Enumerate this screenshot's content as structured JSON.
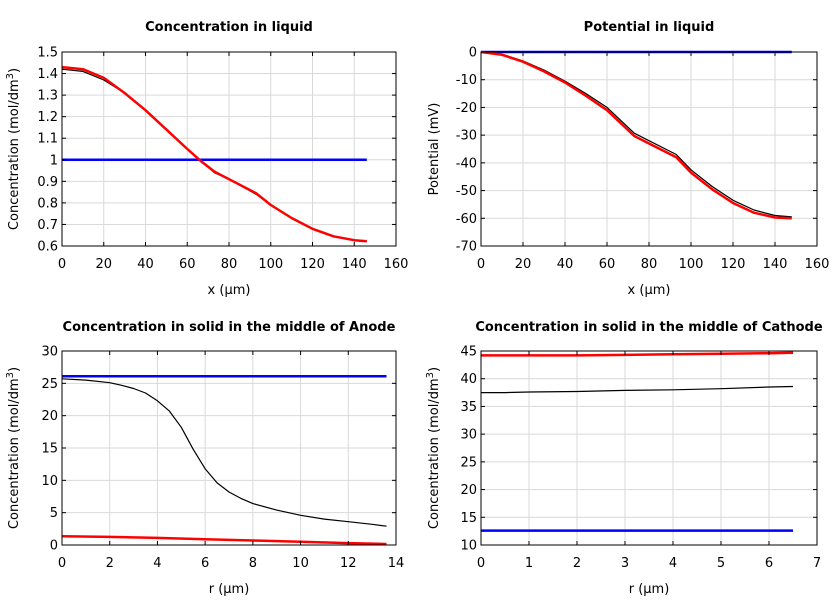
{
  "chart_data": [
    {
      "type": "line",
      "title": "Concentration in liquid",
      "xlabel": "x (µm)",
      "ylabel_main": "Concentration (mol/dm",
      "ylabel_sup": "3",
      "ylabel_end": ")",
      "xlim": [
        0,
        160
      ],
      "ylim": [
        0.6,
        1.5
      ],
      "xticks": [
        0,
        20,
        40,
        60,
        80,
        100,
        120,
        140,
        160
      ],
      "xtick_labels": [
        "0",
        "20",
        "40",
        "60",
        "80",
        "100",
        "120",
        "140",
        "160"
      ],
      "yticks": [
        0.6,
        0.7,
        0.8,
        0.9,
        1.0,
        1.1,
        1.2,
        1.3,
        1.4,
        1.5
      ],
      "ytick_labels": [
        "0.6",
        "0.7",
        "0.8",
        "0.9",
        "1",
        "1.1",
        "1.2",
        "1.3",
        "1.4",
        "1.5"
      ],
      "grid": true,
      "series": [
        {
          "color": "#0000ff",
          "width": 2.5,
          "x": [
            0,
            146
          ],
          "y": [
            1.0,
            1.0
          ]
        },
        {
          "color": "#000000",
          "width": 1.2,
          "x": [
            0,
            10,
            20,
            30,
            40,
            50,
            60,
            67,
            73,
            80,
            93,
            100,
            110,
            120,
            130,
            140,
            146
          ],
          "y": [
            1.42,
            1.41,
            1.37,
            1.31,
            1.23,
            1.14,
            1.05,
            0.99,
            0.94,
            0.91,
            0.84,
            0.79,
            0.73,
            0.68,
            0.645,
            0.627,
            0.622
          ]
        },
        {
          "color": "#ff0000",
          "width": 2.5,
          "x": [
            0,
            10,
            20,
            30,
            40,
            50,
            60,
            67,
            73,
            80,
            93,
            100,
            110,
            120,
            130,
            140,
            146
          ],
          "y": [
            1.43,
            1.42,
            1.38,
            1.31,
            1.23,
            1.14,
            1.05,
            0.99,
            0.945,
            0.91,
            0.845,
            0.79,
            0.73,
            0.68,
            0.645,
            0.627,
            0.622
          ]
        }
      ]
    },
    {
      "type": "line",
      "title": "Potential in liquid",
      "xlabel": "x (µm)",
      "ylabel_main": "Potential (mV)",
      "ylabel_sup": "",
      "ylabel_end": "",
      "xlim": [
        0,
        160
      ],
      "ylim": [
        -70,
        0
      ],
      "xticks": [
        0,
        20,
        40,
        60,
        80,
        100,
        120,
        140,
        160
      ],
      "xtick_labels": [
        "0",
        "20",
        "40",
        "60",
        "80",
        "100",
        "120",
        "140",
        "160"
      ],
      "yticks": [
        -70,
        -60,
        -50,
        -40,
        -30,
        -20,
        -10,
        0
      ],
      "ytick_labels": [
        "-70",
        "-60",
        "-50",
        "-40",
        "-30",
        "-20",
        "-10",
        "0"
      ],
      "grid": true,
      "series": [
        {
          "color": "#0000ff",
          "width": 2.5,
          "x": [
            0,
            148
          ],
          "y": [
            0,
            0
          ]
        },
        {
          "color": "#000000",
          "width": 1.2,
          "x": [
            0,
            10,
            20,
            30,
            40,
            50,
            60,
            73,
            80,
            93,
            100,
            110,
            120,
            130,
            140,
            148
          ],
          "y": [
            0,
            -0.8,
            -3.2,
            -6.5,
            -10.5,
            -15,
            -20,
            -29.3,
            -32,
            -37,
            -42.5,
            -48.5,
            -53.5,
            -57,
            -59,
            -59.5
          ]
        },
        {
          "color": "#ff0000",
          "width": 2.5,
          "x": [
            0,
            10,
            20,
            30,
            40,
            50,
            60,
            73,
            80,
            93,
            100,
            110,
            120,
            130,
            140,
            148
          ],
          "y": [
            0,
            -1.0,
            -3.5,
            -7,
            -11,
            -15.8,
            -21,
            -30.3,
            -33,
            -38,
            -43.5,
            -49.5,
            -54.5,
            -58,
            -59.7,
            -60
          ]
        }
      ]
    },
    {
      "type": "line",
      "title": "Concentration in solid in the middle of Anode",
      "xlabel": "r (µm)",
      "ylabel_main": "Concentration (mol/dm",
      "ylabel_sup": "3",
      "ylabel_end": ")",
      "xlim": [
        0,
        14
      ],
      "ylim": [
        0,
        30
      ],
      "xticks": [
        0,
        2,
        4,
        6,
        8,
        10,
        12,
        14
      ],
      "xtick_labels": [
        "0",
        "2",
        "4",
        "6",
        "8",
        "10",
        "12",
        "14"
      ],
      "yticks": [
        0,
        5,
        10,
        15,
        20,
        25,
        30
      ],
      "ytick_labels": [
        "0",
        "5",
        "10",
        "15",
        "20",
        "25",
        "30"
      ],
      "grid": true,
      "series": [
        {
          "color": "#0000ff",
          "width": 2.5,
          "x": [
            0,
            13.6
          ],
          "y": [
            26.1,
            26.1
          ]
        },
        {
          "color": "#000000",
          "width": 1.2,
          "x": [
            0,
            1,
            2,
            2.5,
            3,
            3.5,
            4,
            4.5,
            5,
            5.5,
            6,
            6.5,
            7,
            7.5,
            8,
            9,
            10,
            11,
            12,
            13,
            13.6
          ],
          "y": [
            25.7,
            25.5,
            25.1,
            24.7,
            24.2,
            23.5,
            22.3,
            20.7,
            18.2,
            14.8,
            11.8,
            9.6,
            8.2,
            7.2,
            6.4,
            5.4,
            4.6,
            4.0,
            3.6,
            3.2,
            2.9
          ]
        },
        {
          "color": "#ff0000",
          "width": 2.5,
          "x": [
            0,
            2,
            4,
            6,
            8,
            10,
            12,
            13.6
          ],
          "y": [
            1.35,
            1.25,
            1.1,
            0.9,
            0.7,
            0.5,
            0.3,
            0.15
          ]
        }
      ]
    },
    {
      "type": "line",
      "title": "Concentration in solid in the middle of Cathode",
      "xlabel": "r (µm)",
      "ylabel_main": "Concentration (mol/dm",
      "ylabel_sup": "3",
      "ylabel_end": ")",
      "xlim": [
        0,
        7
      ],
      "ylim": [
        10,
        45
      ],
      "xticks": [
        0,
        1,
        2,
        3,
        4,
        5,
        6,
        7
      ],
      "xtick_labels": [
        "0",
        "1",
        "2",
        "3",
        "4",
        "5",
        "6",
        "7"
      ],
      "yticks": [
        10,
        15,
        20,
        25,
        30,
        35,
        40,
        45
      ],
      "ytick_labels": [
        "10",
        "15",
        "20",
        "25",
        "30",
        "35",
        "40",
        "45"
      ],
      "grid": true,
      "series": [
        {
          "color": "#0000ff",
          "width": 2.5,
          "x": [
            0,
            6.5
          ],
          "y": [
            12.6,
            12.6
          ]
        },
        {
          "color": "#000000",
          "width": 1.2,
          "x": [
            0,
            0.5,
            1,
            2,
            3,
            4,
            5,
            6,
            6.5
          ],
          "y": [
            37.5,
            37.5,
            37.6,
            37.7,
            37.9,
            38.0,
            38.2,
            38.5,
            38.6
          ]
        },
        {
          "color": "#ff0000",
          "width": 2.5,
          "x": [
            0,
            1,
            2,
            3,
            4,
            5,
            6,
            6.5
          ],
          "y": [
            44.2,
            44.2,
            44.2,
            44.3,
            44.4,
            44.5,
            44.6,
            44.7
          ]
        }
      ]
    }
  ]
}
